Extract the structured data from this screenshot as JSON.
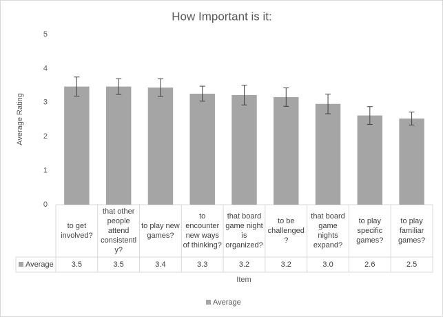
{
  "chart_data": {
    "type": "bar",
    "title": "How Important is it:",
    "x_label": "Item",
    "y_label": "Average Rating",
    "categories": [
      "to get involved?",
      "that other people attend consistently?",
      "to play new games?",
      "to encounter new ways of thinking?",
      "that board game night is organized?",
      "to be challenged?",
      "that board game nights expand?",
      "to play specific games?",
      "to play familiar games?"
    ],
    "series": [
      {
        "name": "Average",
        "color": "#a5a5a5",
        "values": [
          3.47,
          3.47,
          3.44,
          3.26,
          3.22,
          3.16,
          2.96,
          2.62,
          2.53
        ],
        "value_labels": [
          "3.5",
          "3.5",
          "3.4",
          "3.3",
          "3.2",
          "3.2",
          "3.0",
          "2.6",
          "2.5"
        ],
        "errors": [
          0.28,
          0.23,
          0.26,
          0.22,
          0.29,
          0.27,
          0.29,
          0.26,
          0.19
        ]
      }
    ],
    "ylim": [
      0,
      5
    ],
    "yticks": [
      0,
      1,
      2,
      3,
      4,
      5
    ],
    "grid": false,
    "legend": "bottom"
  }
}
